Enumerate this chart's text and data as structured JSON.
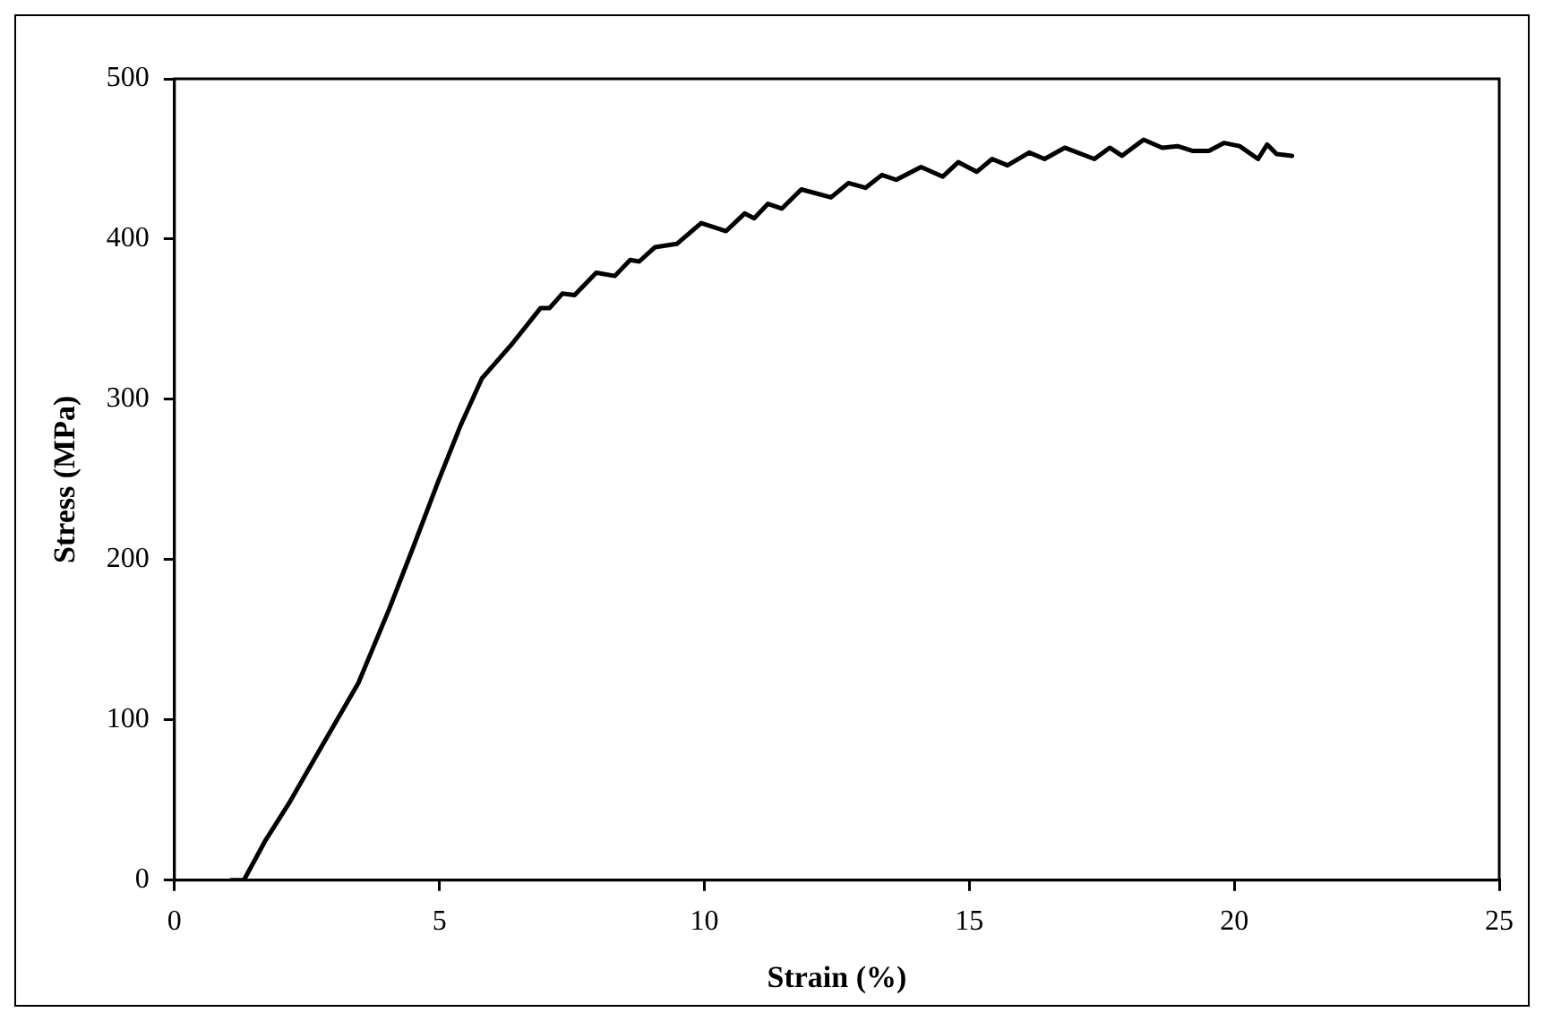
{
  "chart_data": {
    "type": "line",
    "xlabel": "Strain (%)",
    "ylabel": "Stress (MPa)",
    "xlim": [
      0,
      25
    ],
    "xticks": [
      0,
      5,
      10,
      15,
      20,
      25
    ],
    "ylim": [
      0,
      500
    ],
    "yticks": [
      0,
      100,
      200,
      300,
      400,
      500
    ],
    "grid": false,
    "legend": false,
    "marker": "none",
    "line_style": "solid",
    "series": [
      {
        "color": "#000000",
        "x": [
          1.07,
          1.31,
          1.72,
          2.18,
          2.77,
          3.47,
          4.05,
          4.52,
          4.98,
          5.39,
          5.8,
          6.38,
          6.91,
          7.08,
          7.32,
          7.55,
          7.96,
          8.31,
          8.6,
          8.77,
          9.07,
          9.48,
          9.94,
          10.41,
          10.76,
          10.94,
          11.2,
          11.46,
          11.83,
          12.39,
          12.72,
          13.04,
          13.35,
          13.62,
          14.09,
          14.5,
          14.79,
          15.14,
          15.43,
          15.72,
          16.13,
          16.42,
          16.8,
          17.36,
          17.65,
          17.88,
          18.29,
          18.64,
          18.93,
          19.22,
          19.52,
          19.81,
          20.1,
          20.45,
          20.62,
          20.8,
          21.09
        ],
        "values": [
          0,
          0,
          25,
          49,
          83,
          123,
          169,
          209,
          249,
          283,
          313,
          335,
          357,
          357,
          366,
          365,
          379,
          377,
          387,
          386,
          395,
          397,
          410,
          405,
          416,
          413,
          422,
          419,
          431,
          426,
          435,
          432,
          440,
          437,
          445,
          439,
          448,
          442,
          450,
          446,
          454,
          450,
          457,
          450,
          457,
          452,
          462,
          457,
          458,
          455,
          455,
          460,
          458,
          450,
          459,
          453,
          452
        ]
      }
    ]
  }
}
